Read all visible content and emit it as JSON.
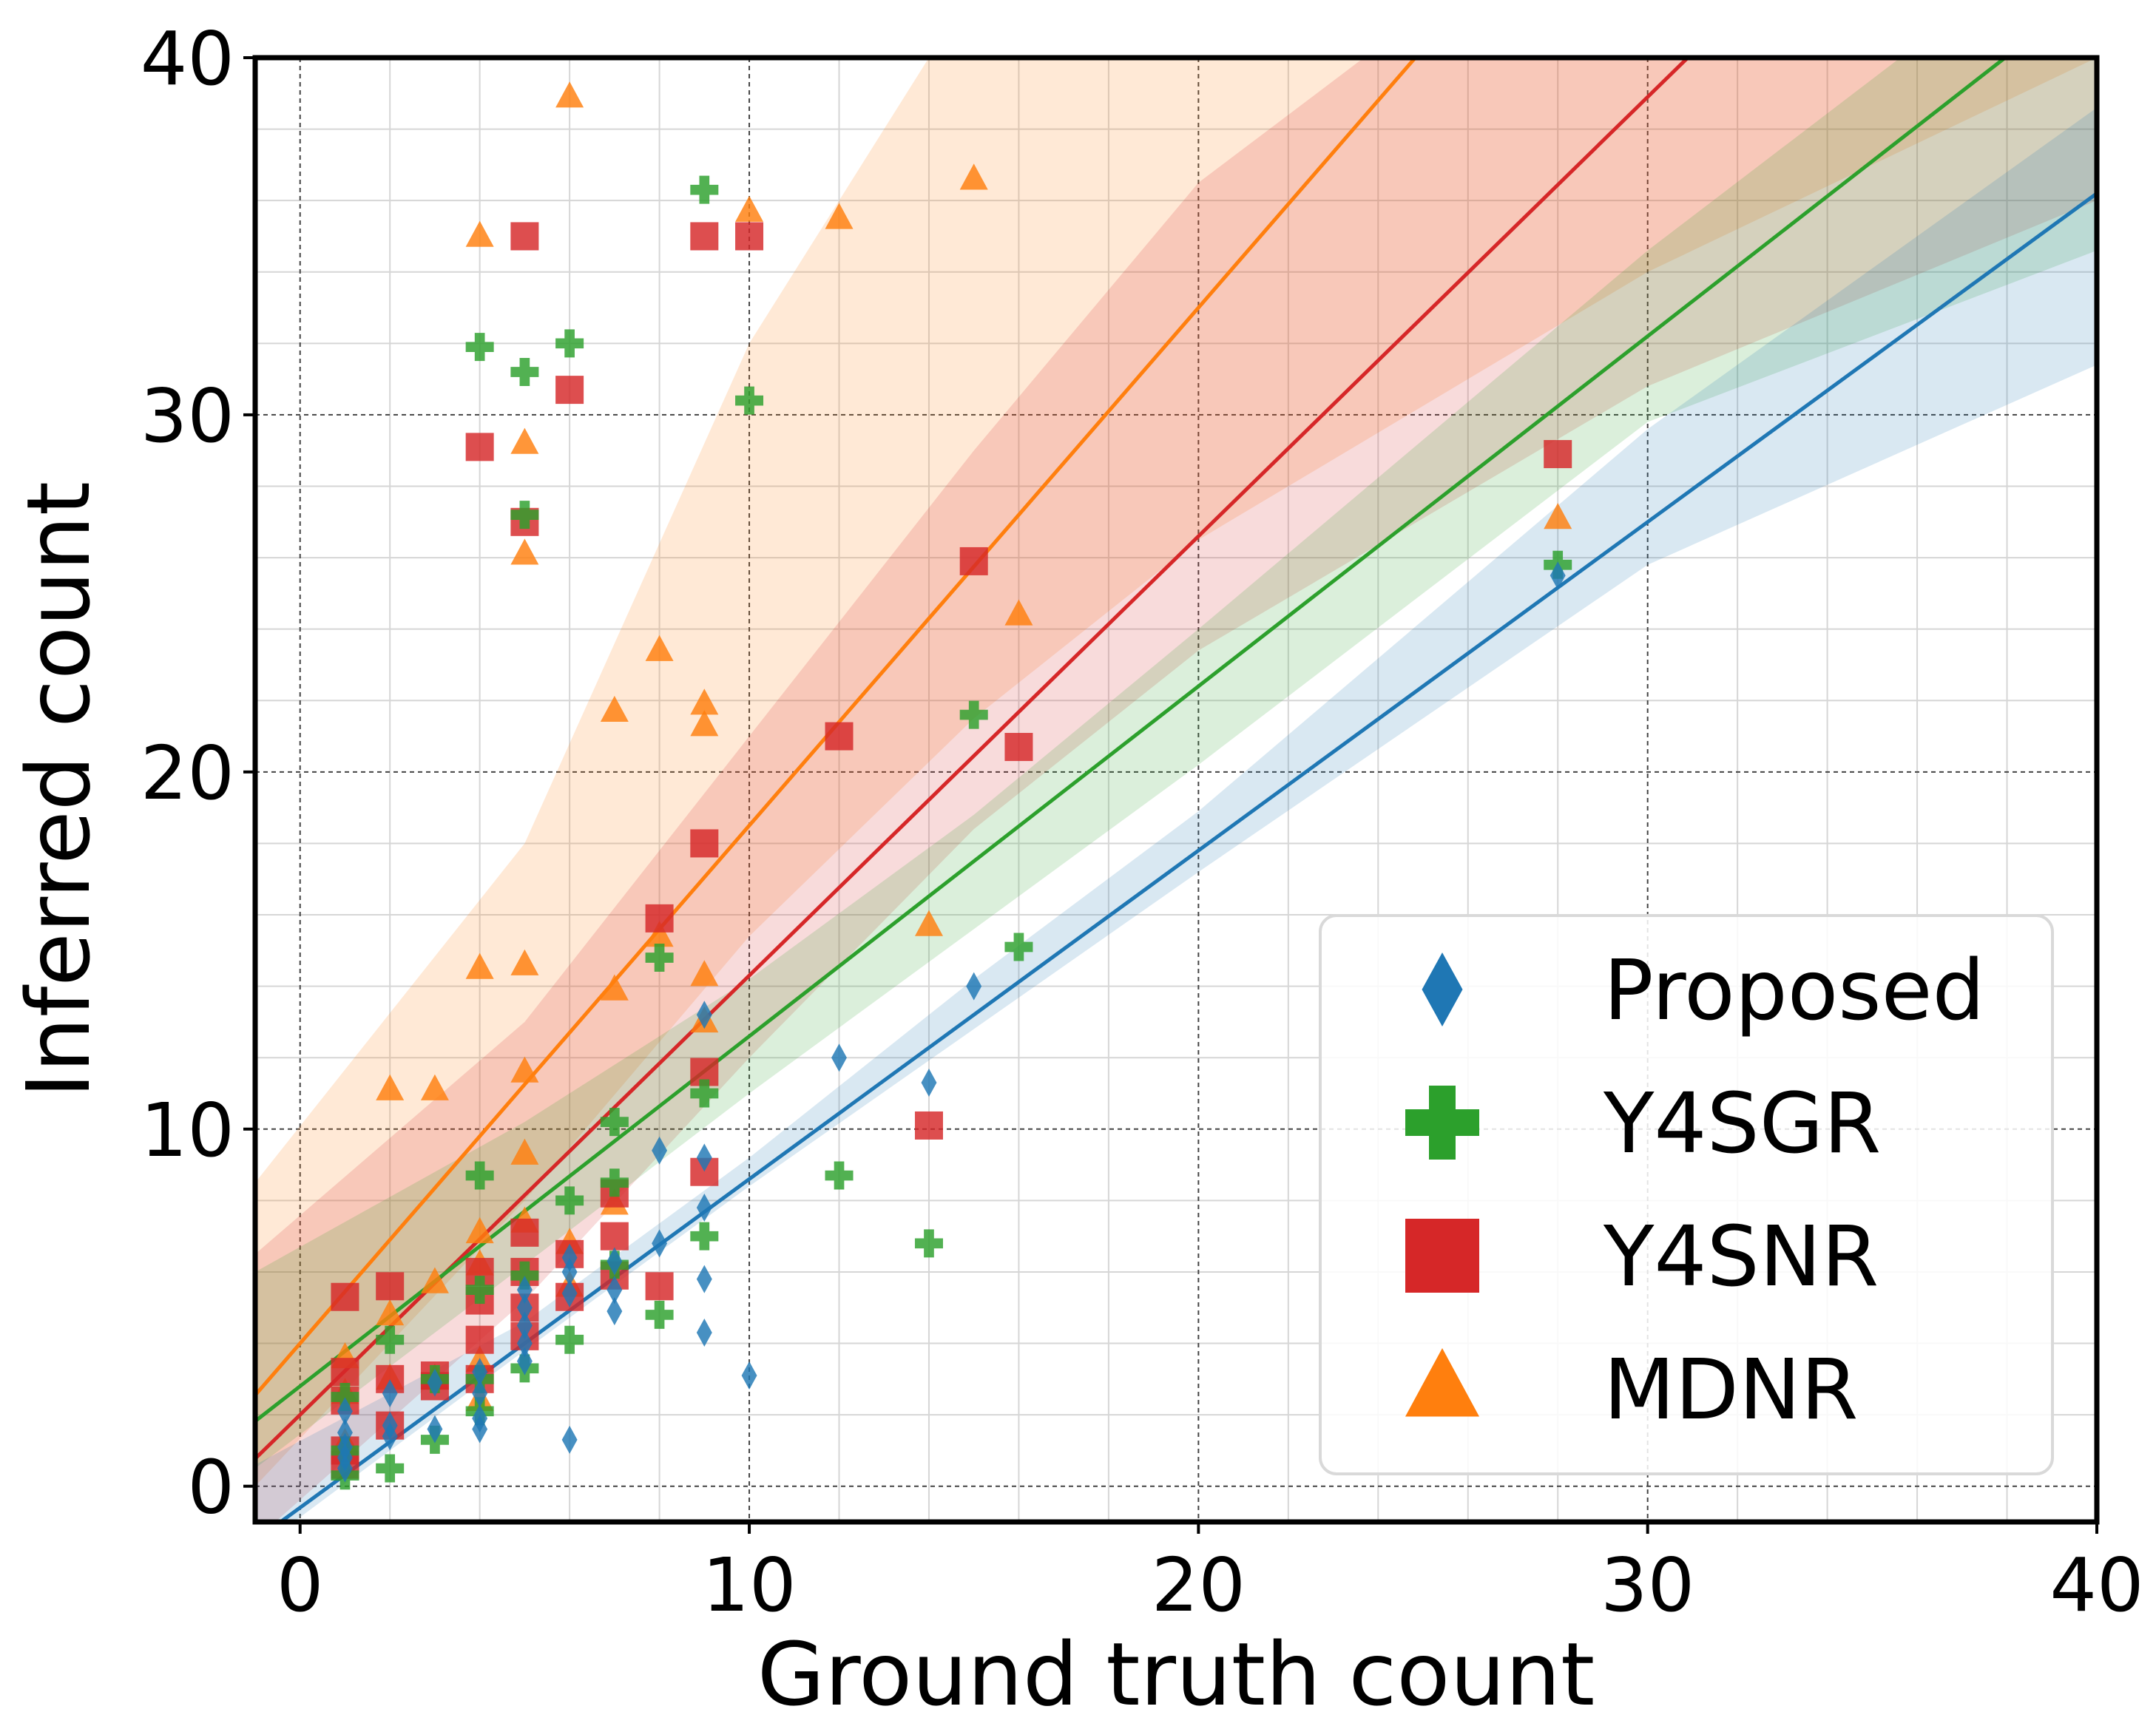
{
  "chart_data": {
    "type": "scatter",
    "title": "",
    "xlabel": "Ground truth count",
    "ylabel": "Inferred count",
    "xlim": [
      -1,
      40
    ],
    "ylim": [
      -1,
      40
    ],
    "xticks": [
      0,
      10,
      20,
      30,
      40
    ],
    "yticks": [
      0,
      10,
      20,
      30,
      40
    ],
    "grid": true,
    "legend_position": "lower-right",
    "series": [
      {
        "name": "Proposed",
        "color": "#1f77b4",
        "marker": "diamond",
        "fit": {
          "slope": 0.92,
          "intercept": -0.6
        },
        "band_low": [
          [
            -1,
            -1.8
          ],
          [
            5,
            3.8
          ],
          [
            10,
            8.4
          ],
          [
            15,
            12.8
          ],
          [
            20,
            17.2
          ],
          [
            30,
            25.8
          ],
          [
            40,
            31.4
          ]
        ],
        "band_high": [
          [
            -1,
            0.6
          ],
          [
            5,
            4.6
          ],
          [
            10,
            9.2
          ],
          [
            15,
            14.2
          ],
          [
            20,
            18.9
          ],
          [
            30,
            29.6
          ],
          [
            40,
            38.6
          ]
        ],
        "points": [
          [
            1,
            1.5
          ],
          [
            1,
            1.1
          ],
          [
            1,
            0.8
          ],
          [
            1,
            2.1
          ],
          [
            1,
            0.5
          ],
          [
            2,
            1.4
          ],
          [
            2,
            1.7
          ],
          [
            2,
            2.6
          ],
          [
            3,
            1.6
          ],
          [
            3,
            2.9
          ],
          [
            4,
            1.6
          ],
          [
            4,
            1.9
          ],
          [
            4,
            2.6
          ],
          [
            4,
            3.2
          ],
          [
            5,
            3.5
          ],
          [
            5,
            4.0
          ],
          [
            5,
            4.5
          ],
          [
            5,
            5.0
          ],
          [
            5,
            5.5
          ],
          [
            6,
            1.3
          ],
          [
            6,
            5.4
          ],
          [
            6,
            6.0
          ],
          [
            6,
            6.4
          ],
          [
            7,
            4.9
          ],
          [
            7,
            5.5
          ],
          [
            7,
            6.3
          ],
          [
            8,
            6.8
          ],
          [
            8,
            9.4
          ],
          [
            9,
            4.3
          ],
          [
            9,
            5.8
          ],
          [
            9,
            7.8
          ],
          [
            9,
            9.2
          ],
          [
            9,
            13.2
          ],
          [
            10,
            3.1
          ],
          [
            12,
            12.0
          ],
          [
            14,
            11.3
          ],
          [
            15,
            14.0
          ],
          [
            28,
            25.5
          ]
        ]
      },
      {
        "name": "Y4SGR",
        "color": "#2ca02c",
        "marker": "plus",
        "fit": {
          "slope": 0.98,
          "intercept": 2.8
        },
        "band_low": [
          [
            -1,
            0.5
          ],
          [
            5,
            6.2
          ],
          [
            10,
            11.0
          ],
          [
            15,
            15.6
          ],
          [
            20,
            20.2
          ],
          [
            30,
            29.8
          ],
          [
            40,
            34.6
          ]
        ],
        "band_high": [
          [
            -1,
            6.0
          ],
          [
            5,
            10.2
          ],
          [
            10,
            14.2
          ],
          [
            15,
            18.8
          ],
          [
            20,
            24.0
          ],
          [
            30,
            34.6
          ],
          [
            40,
            44.2
          ]
        ],
        "points": [
          [
            1,
            0.3
          ],
          [
            1,
            2.5
          ],
          [
            1,
            1.0
          ],
          [
            2,
            0.5
          ],
          [
            2,
            4.1
          ],
          [
            3,
            1.3
          ],
          [
            3,
            3.0
          ],
          [
            4,
            31.9
          ],
          [
            4,
            8.7
          ],
          [
            4,
            5.5
          ],
          [
            4,
            3.0
          ],
          [
            4,
            2.1
          ],
          [
            5,
            31.2
          ],
          [
            5,
            27.2
          ],
          [
            5,
            5.9
          ],
          [
            5,
            3.3
          ],
          [
            6,
            32.0
          ],
          [
            6,
            8.0
          ],
          [
            6,
            4.1
          ],
          [
            7,
            10.2
          ],
          [
            7,
            8.5
          ],
          [
            7,
            6.2
          ],
          [
            8,
            14.8
          ],
          [
            8,
            4.8
          ],
          [
            9,
            36.3
          ],
          [
            9,
            11.0
          ],
          [
            9,
            7.0
          ],
          [
            10,
            30.4
          ],
          [
            12,
            8.7
          ],
          [
            14,
            6.8
          ],
          [
            15,
            21.6
          ],
          [
            16,
            15.1
          ],
          [
            28,
            25.8
          ]
        ]
      },
      {
        "name": "Y4SNR",
        "color": "#d62728",
        "marker": "square",
        "fit": {
          "slope": 1.23,
          "intercept": 2.0
        },
        "band_low": [
          [
            -1,
            -1.5
          ],
          [
            5,
            5.2
          ],
          [
            10,
            12.0
          ],
          [
            15,
            18.4
          ],
          [
            20,
            23.4
          ],
          [
            30,
            30.8
          ],
          [
            40,
            36.0
          ]
        ],
        "band_high": [
          [
            -1,
            6.5
          ],
          [
            5,
            13.0
          ],
          [
            10,
            21.0
          ],
          [
            15,
            29.0
          ],
          [
            20,
            36.5
          ],
          [
            30,
            46.0
          ],
          [
            40,
            56.0
          ]
        ],
        "points": [
          [
            1,
            5.3
          ],
          [
            1,
            3.2
          ],
          [
            1,
            2.4
          ],
          [
            1,
            1.0
          ],
          [
            1,
            0.6
          ],
          [
            2,
            5.6
          ],
          [
            2,
            3.0
          ],
          [
            2,
            1.7
          ],
          [
            3,
            3.1
          ],
          [
            3,
            2.8
          ],
          [
            4,
            29.1
          ],
          [
            4,
            6.0
          ],
          [
            4,
            5.2
          ],
          [
            4,
            4.1
          ],
          [
            4,
            3.0
          ],
          [
            5,
            35.0
          ],
          [
            5,
            27.0
          ],
          [
            5,
            7.1
          ],
          [
            5,
            6.0
          ],
          [
            5,
            5.0
          ],
          [
            5,
            4.2
          ],
          [
            6,
            30.7
          ],
          [
            6,
            6.5
          ],
          [
            6,
            5.3
          ],
          [
            7,
            8.2
          ],
          [
            7,
            7.0
          ],
          [
            7,
            5.9
          ],
          [
            8,
            15.9
          ],
          [
            8,
            5.6
          ],
          [
            9,
            35.0
          ],
          [
            9,
            18.0
          ],
          [
            9,
            11.6
          ],
          [
            9,
            8.8
          ],
          [
            10,
            35.0
          ],
          [
            12,
            21.0
          ],
          [
            14,
            10.1
          ],
          [
            15,
            25.9
          ],
          [
            16,
            20.7
          ],
          [
            28,
            28.9
          ]
        ]
      },
      {
        "name": "MDNR",
        "color": "#ff7f0e",
        "marker": "triangle",
        "fit": {
          "slope": 1.45,
          "intercept": 4.0
        },
        "band_low": [
          [
            -1,
            0.0
          ],
          [
            5,
            8.0
          ],
          [
            10,
            15.4
          ],
          [
            15,
            21.5
          ],
          [
            20,
            26.5
          ],
          [
            30,
            34.0
          ],
          [
            40,
            40.0
          ]
        ],
        "band_high": [
          [
            -1,
            8.5
          ],
          [
            5,
            18.0
          ],
          [
            10,
            32.0
          ],
          [
            15,
            42.0
          ],
          [
            20,
            52.0
          ],
          [
            30,
            62.0
          ],
          [
            40,
            72.0
          ]
        ],
        "points": [
          [
            1,
            1.2
          ],
          [
            1,
            2.6
          ],
          [
            1,
            3.6
          ],
          [
            2,
            11.1
          ],
          [
            2,
            4.8
          ],
          [
            2,
            3.0
          ],
          [
            3,
            11.1
          ],
          [
            3,
            5.7
          ],
          [
            3,
            3.0
          ],
          [
            4,
            35.0
          ],
          [
            4,
            14.5
          ],
          [
            4,
            7.1
          ],
          [
            4,
            6.2
          ],
          [
            4,
            3.5
          ],
          [
            4,
            2.4
          ],
          [
            5,
            29.2
          ],
          [
            5,
            26.1
          ],
          [
            5,
            14.6
          ],
          [
            5,
            11.6
          ],
          [
            5,
            9.3
          ],
          [
            5,
            7.4
          ],
          [
            6,
            38.9
          ],
          [
            6,
            6.8
          ],
          [
            6,
            5.6
          ],
          [
            7,
            21.7
          ],
          [
            7,
            13.9
          ],
          [
            7,
            7.9
          ],
          [
            8,
            23.4
          ],
          [
            8,
            15.4
          ],
          [
            9,
            21.9
          ],
          [
            9,
            21.3
          ],
          [
            9,
            14.3
          ],
          [
            9,
            13.0
          ],
          [
            10,
            35.7
          ],
          [
            12,
            35.5
          ],
          [
            14,
            15.7
          ],
          [
            15,
            36.6
          ],
          [
            16,
            24.4
          ],
          [
            28,
            27.1
          ]
        ]
      }
    ]
  }
}
